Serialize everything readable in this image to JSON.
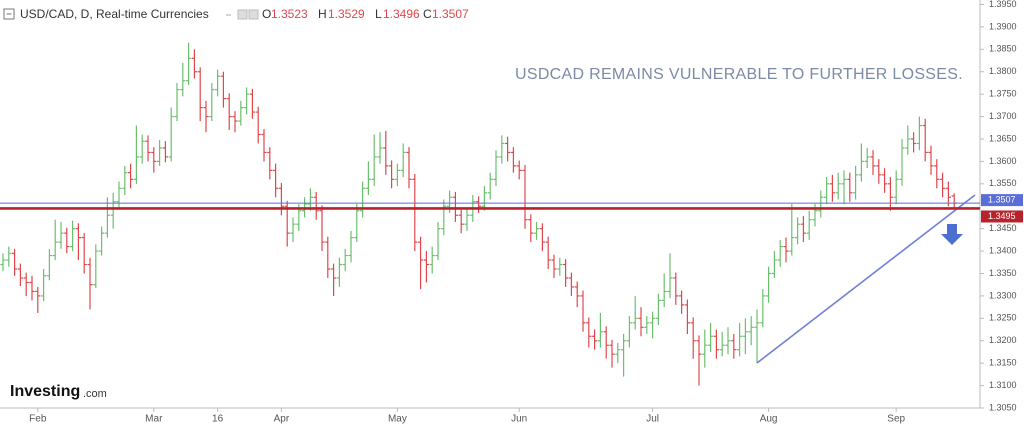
{
  "chart_data": {
    "type": "ohlc",
    "title": "USD/CAD, D, Real-time Currencies",
    "ohlc_header": [
      {
        "label": "O",
        "value": 1.3523
      },
      {
        "label": "H",
        "value": 1.3529
      },
      {
        "label": "L",
        "value": 1.3496
      },
      {
        "label": "C",
        "value": 1.3507
      }
    ],
    "annotation": "USDCAD REMAINS VULNERABLE TO FURTHER LOSSES.",
    "brand": {
      "name": "Investing",
      "suffix": ".com"
    },
    "up_color": "#6cbf6f",
    "down_color": "#e0474c",
    "ylim": [
      1.305,
      1.396
    ],
    "yticks": [
      {
        "value": 1.395,
        "label": "1.3950"
      },
      {
        "value": 1.39,
        "label": "1.3900"
      },
      {
        "value": 1.385,
        "label": "1.3850"
      },
      {
        "value": 1.38,
        "label": "1.3800"
      },
      {
        "value": 1.375,
        "label": "1.3750"
      },
      {
        "value": 1.37,
        "label": "1.3700"
      },
      {
        "value": 1.365,
        "label": "1.3650"
      },
      {
        "value": 1.36,
        "label": "1.3600"
      },
      {
        "value": 1.355,
        "label": "1.3550"
      },
      {
        "value": 1.345,
        "label": "1.3450"
      },
      {
        "value": 1.34,
        "label": "1.3400"
      },
      {
        "value": 1.335,
        "label": "1.3350"
      },
      {
        "value": 1.33,
        "label": "1.3300"
      },
      {
        "value": 1.325,
        "label": "1.3250"
      },
      {
        "value": 1.32,
        "label": "1.3200"
      },
      {
        "value": 1.315,
        "label": "1.3150"
      },
      {
        "value": 1.31,
        "label": "1.3100"
      },
      {
        "value": 1.305,
        "label": "1.3050"
      }
    ],
    "price_lines": [
      {
        "value": 1.3507,
        "color": "#5b6ed8"
      },
      {
        "value": 1.3495,
        "color": "#b8232b"
      }
    ],
    "categories": [
      null,
      null,
      null,
      null,
      null,
      null,
      "Feb",
      null,
      null,
      null,
      null,
      null,
      null,
      null,
      null,
      null,
      null,
      null,
      null,
      null,
      null,
      null,
      null,
      null,
      null,
      null,
      "Mar",
      null,
      null,
      null,
      null,
      null,
      null,
      null,
      null,
      null,
      null,
      "16",
      null,
      null,
      null,
      null,
      null,
      null,
      null,
      null,
      null,
      null,
      "Apr",
      null,
      null,
      null,
      null,
      null,
      null,
      null,
      null,
      null,
      null,
      null,
      null,
      null,
      null,
      null,
      null,
      null,
      null,
      null,
      "May",
      null,
      null,
      null,
      null,
      null,
      null,
      null,
      null,
      null,
      null,
      null,
      null,
      null,
      null,
      null,
      null,
      null,
      null,
      null,
      null,
      "Jun",
      null,
      null,
      null,
      null,
      null,
      null,
      null,
      null,
      null,
      null,
      null,
      null,
      null,
      null,
      null,
      null,
      null,
      null,
      null,
      null,
      null,
      null,
      "Jul",
      null,
      null,
      null,
      null,
      null,
      null,
      null,
      null,
      null,
      null,
      null,
      null,
      null,
      null,
      null,
      null,
      null,
      null,
      null,
      "Aug",
      null,
      null,
      null,
      null,
      null,
      null,
      null,
      null,
      null,
      null,
      null,
      null,
      null,
      null,
      null,
      null,
      null,
      null,
      null,
      null,
      null,
      "Sep",
      null,
      null,
      null,
      null,
      null,
      null,
      null,
      null,
      null,
      null
    ],
    "open": [
      1.337,
      1.338,
      1.3395,
      1.336,
      1.334,
      1.333,
      1.331,
      1.33,
      1.3345,
      1.339,
      1.342,
      1.344,
      1.341,
      1.345,
      1.343,
      1.337,
      1.3325,
      1.34,
      1.344,
      1.348,
      1.351,
      1.354,
      1.3575,
      1.356,
      1.361,
      1.3645,
      1.362,
      1.36,
      1.363,
      1.361,
      1.37,
      1.376,
      1.378,
      1.383,
      1.38,
      1.372,
      1.37,
      1.376,
      1.379,
      1.374,
      1.37,
      1.369,
      1.372,
      1.375,
      1.371,
      1.366,
      1.362,
      1.358,
      1.354,
      1.35,
      1.344,
      1.346,
      1.349,
      1.3505,
      1.352,
      1.349,
      1.342,
      1.336,
      1.334,
      1.337,
      1.339,
      1.343,
      1.349,
      1.354,
      1.356,
      1.361,
      1.363,
      1.359,
      1.356,
      1.358,
      1.362,
      1.356,
      1.342,
      1.338,
      1.337,
      1.339,
      1.345,
      1.35,
      1.352,
      1.348,
      1.346,
      1.348,
      1.351,
      1.35,
      1.353,
      1.356,
      1.361,
      1.364,
      1.362,
      1.359,
      1.358,
      1.347,
      1.344,
      1.345,
      1.342,
      1.338,
      1.336,
      1.337,
      1.334,
      1.332,
      1.33,
      1.324,
      1.321,
      1.32,
      1.322,
      1.319,
      1.317,
      1.318,
      1.32,
      1.324,
      1.325,
      1.323,
      1.324,
      1.325,
      1.329,
      1.331,
      1.334,
      1.33,
      1.328,
      1.324,
      1.32,
      1.317,
      1.319,
      1.321,
      1.318,
      1.319,
      1.32,
      1.318,
      1.321,
      1.322,
      1.323,
      1.324,
      1.33,
      1.335,
      1.338,
      1.341,
      1.34,
      1.343,
      1.346,
      1.344,
      1.347,
      1.349,
      1.352,
      1.355,
      1.353,
      1.355,
      1.356,
      1.353,
      1.357,
      1.36,
      1.361,
      1.359,
      1.357,
      1.355,
      1.352,
      1.356,
      1.363,
      1.365,
      1.364,
      1.368,
      1.362,
      1.359,
      1.356,
      1.354,
      1.3523
    ],
    "high": [
      1.3395,
      1.341,
      1.3405,
      1.3372,
      1.3352,
      1.3345,
      1.332,
      1.336,
      1.3405,
      1.347,
      1.3465,
      1.3452,
      1.3468,
      1.3462,
      1.344,
      1.3385,
      1.3415,
      1.3455,
      1.352,
      1.353,
      1.3555,
      1.359,
      1.3595,
      1.368,
      1.366,
      1.3658,
      1.3632,
      1.3648,
      1.3645,
      1.372,
      1.3775,
      1.382,
      1.3865,
      1.385,
      1.381,
      1.3735,
      1.3775,
      1.3805,
      1.38,
      1.3752,
      1.3712,
      1.3735,
      1.3765,
      1.3762,
      1.3722,
      1.3672,
      1.3632,
      1.3595,
      1.3552,
      1.3512,
      1.3475,
      1.3505,
      1.352,
      1.354,
      1.3532,
      1.3502,
      1.3432,
      1.3372,
      1.3385,
      1.3405,
      1.3445,
      1.3505,
      1.3555,
      1.36,
      1.366,
      1.3665,
      1.3668,
      1.3602,
      1.3595,
      1.364,
      1.3632,
      1.3572,
      1.3432,
      1.34,
      1.341,
      1.3465,
      1.3515,
      1.3535,
      1.3532,
      1.3492,
      1.3495,
      1.3525,
      1.3522,
      1.3545,
      1.3575,
      1.3625,
      1.3658,
      1.3655,
      1.3632,
      1.3602,
      1.3592,
      1.3482,
      1.3465,
      1.3462,
      1.3432,
      1.3392,
      1.3385,
      1.3382,
      1.3352,
      1.3332,
      1.3312,
      1.3252,
      1.3225,
      1.3262,
      1.3232,
      1.3202,
      1.3195,
      1.3215,
      1.3255,
      1.33,
      1.3275,
      1.3255,
      1.3265,
      1.3305,
      1.335,
      1.3395,
      1.3352,
      1.3312,
      1.3292,
      1.3252,
      1.3212,
      1.3225,
      1.324,
      1.3225,
      1.322,
      1.323,
      1.3215,
      1.324,
      1.325,
      1.3255,
      1.327,
      1.3315,
      1.3365,
      1.34,
      1.3425,
      1.343,
      1.3505,
      1.3475,
      1.3478,
      1.349,
      1.3505,
      1.3535,
      1.3565,
      1.357,
      1.3575,
      1.358,
      1.3575,
      1.359,
      1.364,
      1.363,
      1.3625,
      1.3605,
      1.3585,
      1.3565,
      1.358,
      1.365,
      1.368,
      1.3665,
      1.37,
      1.3695,
      1.3635,
      1.3605,
      1.3575,
      1.3555,
      1.3529
    ],
    "low": [
      1.3355,
      1.3365,
      1.3345,
      1.3322,
      1.33,
      1.329,
      1.3262,
      1.3288,
      1.3335,
      1.338,
      1.3405,
      1.3395,
      1.34,
      1.338,
      1.335,
      1.327,
      1.3318,
      1.339,
      1.343,
      1.345,
      1.3495,
      1.3525,
      1.354,
      1.355,
      1.3595,
      1.36,
      1.3575,
      1.359,
      1.3598,
      1.36,
      1.369,
      1.3745,
      1.377,
      1.3785,
      1.369,
      1.3665,
      1.369,
      1.3745,
      1.372,
      1.367,
      1.3665,
      1.368,
      1.3705,
      1.3695,
      1.364,
      1.36,
      1.356,
      1.352,
      1.348,
      1.341,
      1.342,
      1.3445,
      1.3475,
      1.349,
      1.347,
      1.34,
      1.334,
      1.33,
      1.332,
      1.3355,
      1.3375,
      1.342,
      1.3475,
      1.3525,
      1.3545,
      1.3595,
      1.357,
      1.354,
      1.3545,
      1.3565,
      1.354,
      1.34,
      1.3315,
      1.333,
      1.335,
      1.338,
      1.3435,
      1.3485,
      1.3465,
      1.344,
      1.3445,
      1.3465,
      1.3485,
      1.349,
      1.3515,
      1.3545,
      1.3595,
      1.36,
      1.3575,
      1.356,
      1.345,
      1.342,
      1.3425,
      1.34,
      1.336,
      1.334,
      1.3345,
      1.332,
      1.33,
      1.3275,
      1.322,
      1.3185,
      1.318,
      1.3185,
      1.316,
      1.314,
      1.315,
      1.312,
      1.3185,
      1.3225,
      1.321,
      1.3215,
      1.3205,
      1.3235,
      1.3275,
      1.3295,
      1.328,
      1.326,
      1.3215,
      1.316,
      1.31,
      1.314,
      1.3175,
      1.316,
      1.3165,
      1.317,
      1.316,
      1.3165,
      1.317,
      1.319,
      1.315,
      1.323,
      1.3285,
      1.334,
      1.3365,
      1.3375,
      1.339,
      1.3415,
      1.342,
      1.3425,
      1.3455,
      1.3475,
      1.3505,
      1.351,
      1.3515,
      1.3505,
      1.351,
      1.3515,
      1.3555,
      1.3585,
      1.357,
      1.355,
      1.353,
      1.349,
      1.3505,
      1.3545,
      1.3615,
      1.362,
      1.3625,
      1.36,
      1.357,
      1.354,
      1.352,
      1.35,
      1.3496
    ],
    "close": [
      1.338,
      1.3395,
      1.336,
      1.334,
      1.333,
      1.331,
      1.33,
      1.3345,
      1.339,
      1.342,
      1.344,
      1.341,
      1.345,
      1.343,
      1.337,
      1.3325,
      1.34,
      1.344,
      1.348,
      1.351,
      1.354,
      1.3575,
      1.356,
      1.361,
      1.3645,
      1.362,
      1.36,
      1.363,
      1.361,
      1.37,
      1.376,
      1.378,
      1.383,
      1.38,
      1.372,
      1.37,
      1.376,
      1.379,
      1.374,
      1.37,
      1.369,
      1.372,
      1.375,
      1.371,
      1.366,
      1.362,
      1.358,
      1.354,
      1.35,
      1.344,
      1.346,
      1.349,
      1.3505,
      1.352,
      1.349,
      1.342,
      1.336,
      1.334,
      1.337,
      1.339,
      1.343,
      1.349,
      1.354,
      1.356,
      1.361,
      1.363,
      1.359,
      1.356,
      1.358,
      1.362,
      1.356,
      1.342,
      1.338,
      1.337,
      1.339,
      1.345,
      1.35,
      1.352,
      1.348,
      1.346,
      1.348,
      1.351,
      1.35,
      1.353,
      1.356,
      1.361,
      1.364,
      1.362,
      1.359,
      1.358,
      1.347,
      1.344,
      1.345,
      1.342,
      1.338,
      1.336,
      1.337,
      1.334,
      1.332,
      1.33,
      1.324,
      1.321,
      1.32,
      1.322,
      1.319,
      1.317,
      1.318,
      1.32,
      1.324,
      1.325,
      1.323,
      1.324,
      1.325,
      1.329,
      1.331,
      1.334,
      1.33,
      1.328,
      1.324,
      1.32,
      1.317,
      1.319,
      1.321,
      1.318,
      1.319,
      1.32,
      1.318,
      1.321,
      1.322,
      1.323,
      1.324,
      1.33,
      1.335,
      1.338,
      1.341,
      1.34,
      1.343,
      1.346,
      1.344,
      1.347,
      1.349,
      1.352,
      1.355,
      1.353,
      1.355,
      1.356,
      1.353,
      1.357,
      1.36,
      1.361,
      1.359,
      1.357,
      1.355,
      1.352,
      1.356,
      1.363,
      1.365,
      1.364,
      1.368,
      1.362,
      1.359,
      1.356,
      1.354,
      1.352,
      1.3507
    ]
  }
}
